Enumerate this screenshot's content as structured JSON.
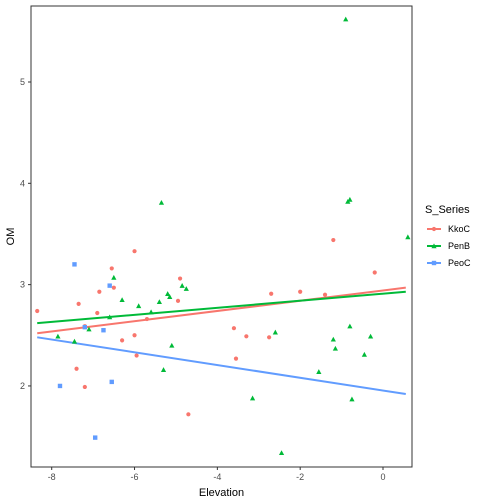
{
  "chart_data": {
    "type": "scatter",
    "title": "",
    "xlabel": "Elevation",
    "ylabel": "OM",
    "xlim": [
      -8.5,
      0.7
    ],
    "ylim": [
      1.2,
      5.75
    ],
    "xticks": [
      -8,
      -6,
      -4,
      -2,
      0
    ],
    "xtick_labels": [
      "-8",
      "-6",
      "-4",
      "-2",
      "0"
    ],
    "yticks": [
      2,
      3,
      4,
      5
    ],
    "ytick_labels": [
      "2",
      "3",
      "4",
      "5"
    ],
    "grid": false,
    "legend": {
      "title": "S_Series",
      "placement": "right"
    },
    "series": [
      {
        "name": "KkoC",
        "color": "#F8766D",
        "marker": "circle",
        "points": [
          [
            -8.35,
            2.74
          ],
          [
            -7.35,
            2.81
          ],
          [
            -7.2,
            2.59
          ],
          [
            -7.2,
            1.99
          ],
          [
            -7.4,
            2.17
          ],
          [
            -6.9,
            2.72
          ],
          [
            -6.85,
            2.93
          ],
          [
            -6.55,
            3.16
          ],
          [
            -6.5,
            2.97
          ],
          [
            -6.3,
            2.45
          ],
          [
            -6.0,
            2.5
          ],
          [
            -6.0,
            3.33
          ],
          [
            -5.95,
            2.3
          ],
          [
            -5.7,
            2.66
          ],
          [
            -4.95,
            2.84
          ],
          [
            -4.9,
            3.06
          ],
          [
            -4.7,
            1.72
          ],
          [
            -3.6,
            2.57
          ],
          [
            -3.55,
            2.27
          ],
          [
            -3.3,
            2.49
          ],
          [
            -2.75,
            2.48
          ],
          [
            -2.7,
            2.91
          ],
          [
            -2.0,
            2.93
          ],
          [
            -1.4,
            2.9
          ],
          [
            -1.2,
            3.44
          ],
          [
            -0.2,
            3.12
          ]
        ],
        "trend": [
          [
            -8.35,
            2.52
          ],
          [
            0.55,
            2.97
          ]
        ]
      },
      {
        "name": "PenB",
        "color": "#00BA38",
        "marker": "triangle",
        "points": [
          [
            -7.85,
            2.49
          ],
          [
            -7.45,
            2.44
          ],
          [
            -7.1,
            2.56
          ],
          [
            -6.6,
            2.68
          ],
          [
            -6.5,
            3.07
          ],
          [
            -6.3,
            2.85
          ],
          [
            -5.9,
            2.79
          ],
          [
            -5.6,
            2.73
          ],
          [
            -5.4,
            2.83
          ],
          [
            -5.35,
            3.81
          ],
          [
            -5.3,
            2.16
          ],
          [
            -5.2,
            2.91
          ],
          [
            -5.15,
            2.88
          ],
          [
            -5.1,
            2.4
          ],
          [
            -4.85,
            2.99
          ],
          [
            -4.75,
            2.96
          ],
          [
            -3.15,
            1.88
          ],
          [
            -2.6,
            2.53
          ],
          [
            -2.45,
            1.34
          ],
          [
            -1.55,
            2.14
          ],
          [
            -1.2,
            2.46
          ],
          [
            -1.15,
            2.37
          ],
          [
            -0.9,
            5.62
          ],
          [
            -0.85,
            3.82
          ],
          [
            -0.8,
            3.84
          ],
          [
            -0.8,
            2.59
          ],
          [
            -0.75,
            1.87
          ],
          [
            -0.45,
            2.31
          ],
          [
            -0.3,
            2.49
          ],
          [
            0.6,
            3.47
          ]
        ],
        "trend": [
          [
            -8.35,
            2.62
          ],
          [
            0.55,
            2.93
          ]
        ]
      },
      {
        "name": "PeoC",
        "color": "#619CFF",
        "marker": "square",
        "points": [
          [
            -7.45,
            3.2
          ],
          [
            -7.2,
            2.58
          ],
          [
            -7.8,
            2.0
          ],
          [
            -6.95,
            1.49
          ],
          [
            -6.75,
            2.55
          ],
          [
            -6.6,
            2.99
          ],
          [
            -6.55,
            2.04
          ]
        ],
        "trend": [
          [
            -8.35,
            2.48
          ],
          [
            0.55,
            1.92
          ]
        ]
      }
    ]
  }
}
